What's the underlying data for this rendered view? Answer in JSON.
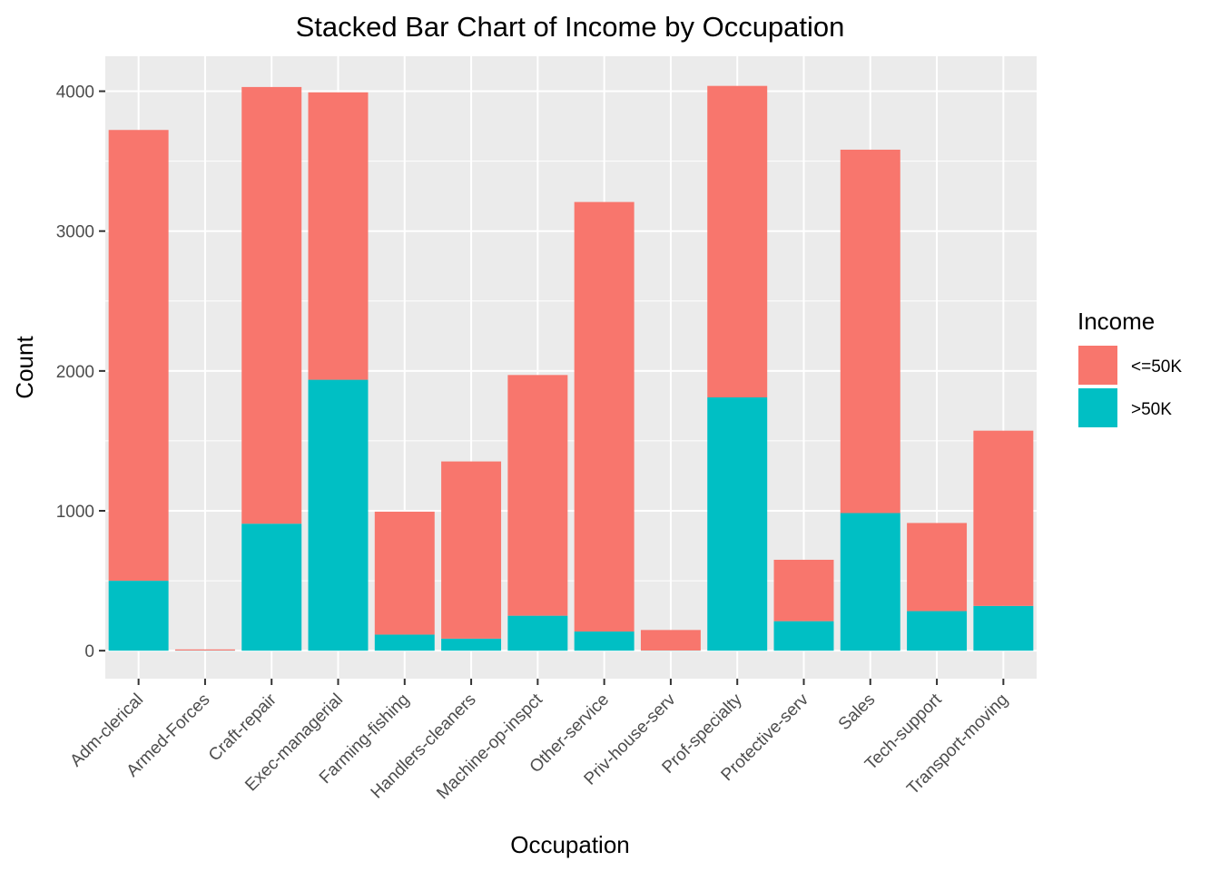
{
  "chart_data": {
    "type": "bar",
    "stacked": true,
    "title": "Stacked Bar Chart of Income by Occupation",
    "xlabel": "Occupation",
    "ylabel": "Count",
    "ylim": [
      -200,
      4250
    ],
    "yticks": [
      0,
      1000,
      2000,
      3000,
      4000
    ],
    "grid": true,
    "legend": {
      "title": "Income",
      "position": "right"
    },
    "categories": [
      "Adm-clerical",
      "Armed-Forces",
      "Craft-repair",
      "Exec-managerial",
      "Farming-fishing",
      "Handlers-cleaners",
      "Machine-op-inspct",
      "Other-service",
      "Priv-house-serv",
      "Prof-specialty",
      "Protective-serv",
      "Sales",
      "Tech-support",
      "Transport-moving"
    ],
    "series": [
      {
        "name": ">50K",
        "color": "#00BFC4",
        "values": [
          500,
          1,
          908,
          1937,
          115,
          86,
          250,
          137,
          1,
          1811,
          211,
          984,
          283,
          320
        ]
      },
      {
        "name": "<=50K",
        "color": "#F8766D",
        "values": [
          3223,
          8,
          3122,
          2055,
          879,
          1267,
          1721,
          3071,
          147,
          2227,
          439,
          2598,
          630,
          1253
        ]
      }
    ]
  },
  "colors": {
    "panel_background": "#EBEBEB",
    "grid": "#FFFFFF",
    "tick": "#333333"
  }
}
